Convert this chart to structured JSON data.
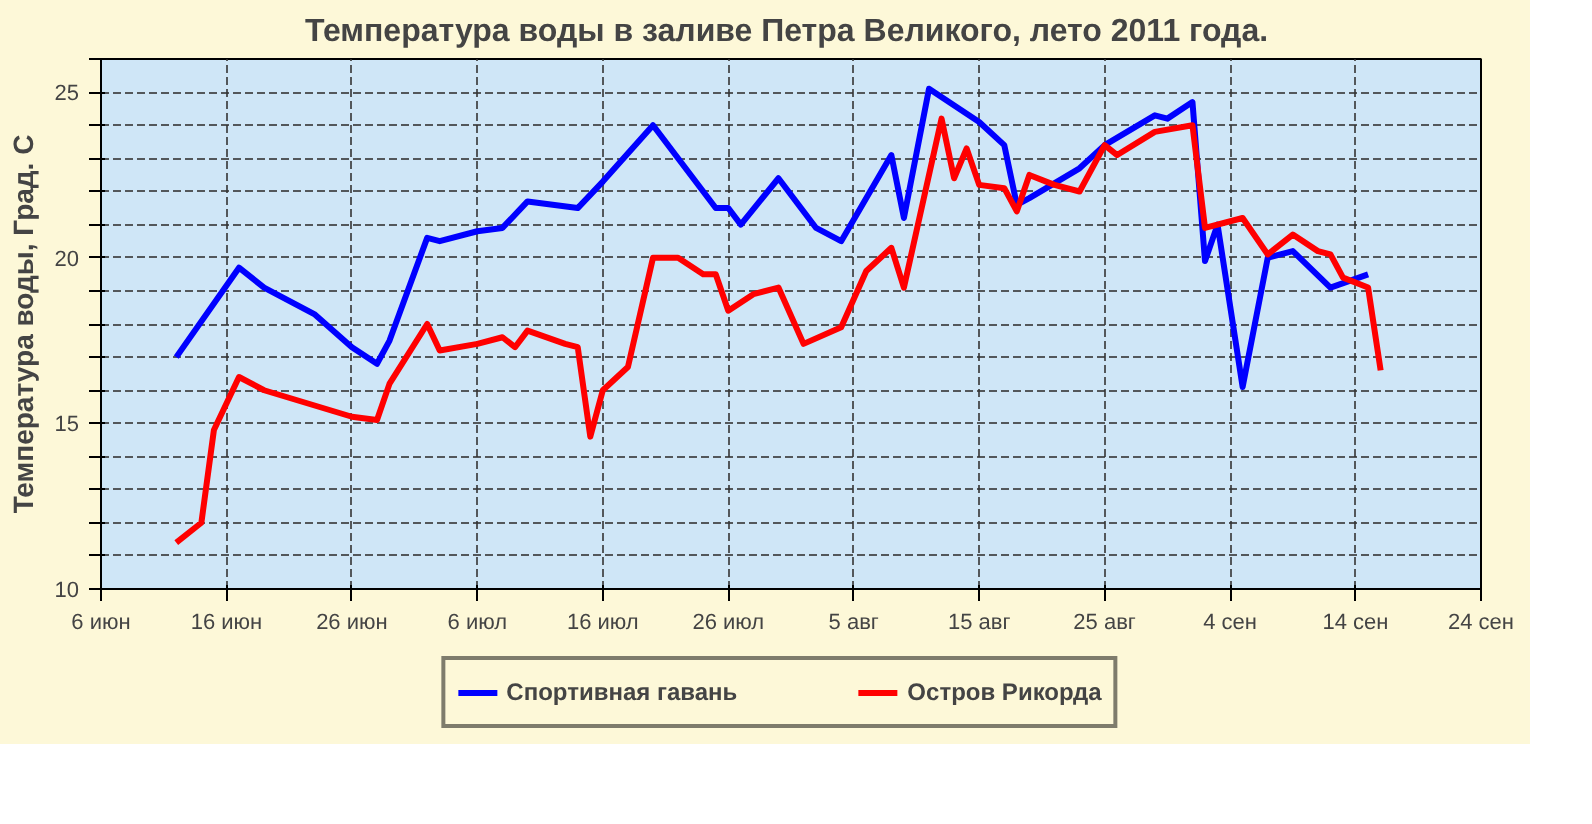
{
  "chart_data": {
    "type": "line",
    "title": "Температура воды в заливе Петра Великого,  лето 2011 года.",
    "ylabel": "Температура воды, Град. С",
    "xlim": [
      "2011-06-06",
      "2011-09-24"
    ],
    "xticks": [
      {
        "value": "2011-06-06",
        "label": "6 июн"
      },
      {
        "value": "2011-06-16",
        "label": "16 июн"
      },
      {
        "value": "2011-06-26",
        "label": "26 июн"
      },
      {
        "value": "2011-07-06",
        "label": "6 июл"
      },
      {
        "value": "2011-07-16",
        "label": "16 июл"
      },
      {
        "value": "2011-07-26",
        "label": "26 июл"
      },
      {
        "value": "2011-08-05",
        "label": "5 авг"
      },
      {
        "value": "2011-08-15",
        "label": "15 авг"
      },
      {
        "value": "2011-08-25",
        "label": "25 авг"
      },
      {
        "value": "2011-09-04",
        "label": "4 сен"
      },
      {
        "value": "2011-09-14",
        "label": "14 сен"
      },
      {
        "value": "2011-09-24",
        "label": "24 сен"
      }
    ],
    "ylim": [
      10,
      26
    ],
    "yticks": [
      10,
      {
        "value": 11,
        "label": null
      },
      {
        "value": 12,
        "label": null
      },
      {
        "value": 13,
        "label": null
      },
      {
        "value": 14,
        "label": null
      },
      15,
      {
        "value": 16,
        "label": null
      },
      {
        "value": 17,
        "label": null
      },
      {
        "value": 18,
        "label": null
      },
      {
        "value": 19,
        "label": null
      },
      20,
      {
        "value": 21,
        "label": null
      },
      {
        "value": 22,
        "label": null
      },
      {
        "value": 23,
        "label": null
      },
      {
        "value": 24,
        "label": null
      },
      25,
      {
        "value": 26,
        "label": null
      }
    ],
    "grid": true,
    "legend": "bottom",
    "marker": "none",
    "line_style": "solid",
    "series": [
      {
        "name": "Спортивная гавань",
        "color": "#0000ff",
        "x": [
          "2011-06-12",
          "2011-06-17",
          "2011-06-19",
          "2011-06-23",
          "2011-06-26",
          "2011-06-28",
          "2011-06-29",
          "2011-07-02",
          "2011-07-03",
          "2011-07-06",
          "2011-07-08",
          "2011-07-10",
          "2011-07-12",
          "2011-07-14",
          "2011-07-16",
          "2011-07-20",
          "2011-07-25",
          "2011-07-26",
          "2011-07-27",
          "2011-07-30",
          "2011-08-02",
          "2011-08-04",
          "2011-08-08",
          "2011-08-09",
          "2011-08-11",
          "2011-08-15",
          "2011-08-17",
          "2011-08-18",
          "2011-08-19",
          "2011-08-23",
          "2011-08-25",
          "2011-08-29",
          "2011-08-30",
          "2011-09-01",
          "2011-09-02",
          "2011-09-03",
          "2011-09-05",
          "2011-09-07",
          "2011-09-09",
          "2011-09-12",
          "2011-09-15"
        ],
        "values": [
          17.0,
          19.7,
          19.1,
          18.3,
          17.3,
          16.8,
          17.5,
          20.6,
          20.5,
          20.8,
          20.9,
          21.7,
          21.6,
          21.5,
          22.3,
          24.0,
          21.5,
          21.5,
          21.0,
          22.4,
          20.9,
          20.5,
          23.1,
          21.2,
          25.1,
          24.1,
          23.4,
          21.6,
          21.8,
          22.7,
          23.4,
          24.3,
          24.2,
          24.7,
          19.9,
          21.0,
          16.1,
          20.0,
          20.2,
          19.1,
          19.5
        ]
      },
      {
        "name": "Остров Рикорда",
        "color": "#ff0000",
        "x": [
          "2011-06-12",
          "2011-06-14",
          "2011-06-15",
          "2011-06-17",
          "2011-06-19",
          "2011-06-26",
          "2011-06-28",
          "2011-06-29",
          "2011-07-02",
          "2011-07-03",
          "2011-07-06",
          "2011-07-08",
          "2011-07-09",
          "2011-07-10",
          "2011-07-13",
          "2011-07-14",
          "2011-07-15",
          "2011-07-16",
          "2011-07-18",
          "2011-07-20",
          "2011-07-22",
          "2011-07-24",
          "2011-07-25",
          "2011-07-26",
          "2011-07-28",
          "2011-07-30",
          "2011-08-01",
          "2011-08-04",
          "2011-08-06",
          "2011-08-08",
          "2011-08-09",
          "2011-08-12",
          "2011-08-13",
          "2011-08-14",
          "2011-08-15",
          "2011-08-17",
          "2011-08-18",
          "2011-08-19",
          "2011-08-21",
          "2011-08-23",
          "2011-08-25",
          "2011-08-26",
          "2011-08-29",
          "2011-09-01",
          "2011-09-02",
          "2011-09-05",
          "2011-09-07",
          "2011-09-09",
          "2011-09-11",
          "2011-09-12",
          "2011-09-13",
          "2011-09-15",
          "2011-09-16"
        ],
        "values": [
          11.4,
          12.0,
          14.8,
          16.4,
          16.0,
          15.2,
          15.1,
          16.2,
          18.0,
          17.2,
          17.4,
          17.6,
          17.3,
          17.8,
          17.4,
          17.3,
          14.6,
          16.0,
          16.7,
          20.0,
          20.0,
          19.5,
          19.5,
          18.4,
          18.9,
          19.1,
          17.4,
          17.9,
          19.6,
          20.3,
          19.1,
          24.2,
          22.4,
          23.3,
          22.2,
          22.1,
          21.4,
          22.5,
          22.2,
          22.0,
          23.4,
          23.1,
          23.8,
          24.0,
          20.9,
          21.2,
          20.1,
          20.7,
          20.2,
          20.1,
          19.4,
          19.1,
          16.6
        ]
      }
    ]
  }
}
